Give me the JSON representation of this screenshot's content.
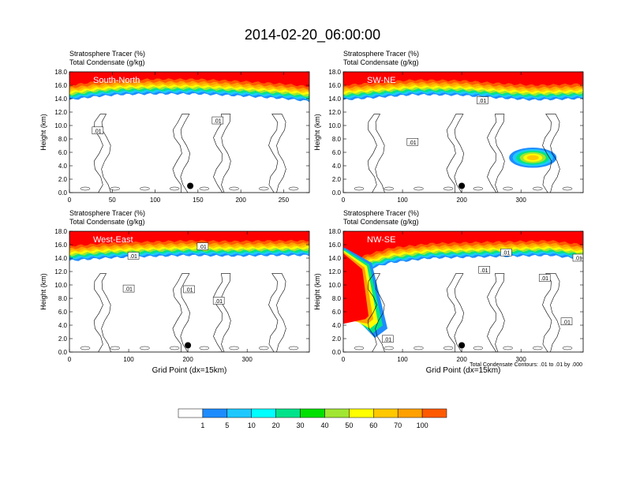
{
  "title": "2014-02-20_06:00:00",
  "colors": {
    "levels": [
      "#ffffff",
      "#1e8cff",
      "#1ec8ff",
      "#00ffff",
      "#00e38a",
      "#00e000",
      "#a0e632",
      "#ffff00",
      "#ffc800",
      "#ffa000",
      "#ff5a00",
      "#ff0000"
    ],
    "contour": "#000000",
    "dot": "#000000"
  },
  "colorbar": {
    "labels": [
      "1",
      "5",
      "10",
      "20",
      "30",
      "40",
      "50",
      "60",
      "70",
      "100"
    ]
  },
  "footnote": "Total Condensate Contours: .01 to .01 by .000",
  "chart_data": [
    {
      "type": "heatmap",
      "panel_label": "South-North",
      "header_line1": "Stratosphere Tracer   (%)",
      "header_line2": "Total Condensate   (g/kg)",
      "ylabel": "Height (km)",
      "xlabel": "",
      "xlim": [
        0,
        280
      ],
      "ylim": [
        0,
        18
      ],
      "xticks": [
        "0",
        "50",
        "100",
        "150",
        "200",
        "250"
      ],
      "xtick_values": [
        0,
        50,
        100,
        150,
        200,
        250
      ],
      "yticks": [
        "0.0",
        "2.0",
        "4.0",
        "6.0",
        "8.0",
        "10.0",
        "12.0",
        "14.0",
        "16.0",
        "18.0"
      ],
      "ytick_values": [
        0,
        2,
        4,
        6,
        8,
        10,
        12,
        14,
        16,
        18
      ],
      "tropopause_km": [
        [
          0,
          15.0
        ],
        [
          30,
          15.5
        ],
        [
          60,
          15.8
        ],
        [
          100,
          15.9
        ],
        [
          150,
          15.9
        ],
        [
          200,
          15.6
        ],
        [
          250,
          15.2
        ],
        [
          280,
          14.8
        ]
      ],
      "contour_labels": [
        {
          "text": ".01",
          "x": 33,
          "y": 9.2
        },
        {
          "text": ".01",
          "x": 173,
          "y": 10.7
        }
      ],
      "marker": {
        "x": 141,
        "y": 1.0
      },
      "blobs": []
    },
    {
      "type": "heatmap",
      "panel_label": "SW-NE",
      "header_line1": "Stratosphere Tracer   (%)",
      "header_line2": "Total Condensate   (g/kg)",
      "ylabel": "Height (km)",
      "xlabel": "",
      "xlim": [
        0,
        405
      ],
      "ylim": [
        0,
        18
      ],
      "xticks": [
        "0",
        "100",
        "200",
        "300"
      ],
      "xtick_values": [
        0,
        100,
        200,
        300
      ],
      "yticks": [
        "0.0",
        "2.0",
        "4.0",
        "6.0",
        "8.0",
        "10.0",
        "12.0",
        "14.0",
        "16.0",
        "18.0"
      ],
      "ytick_values": [
        0,
        2,
        4,
        6,
        8,
        10,
        12,
        14,
        16,
        18
      ],
      "tropopause_km": [
        [
          0,
          15.0
        ],
        [
          60,
          15.4
        ],
        [
          120,
          15.8
        ],
        [
          200,
          15.7
        ],
        [
          260,
          15.3
        ],
        [
          320,
          15.0
        ],
        [
          405,
          15.2
        ]
      ],
      "contour_labels": [
        {
          "text": ".01",
          "x": 117,
          "y": 7.5
        },
        {
          "text": ".01",
          "x": 235,
          "y": 13.7
        }
      ],
      "marker": {
        "x": 200,
        "y": 1.0
      },
      "blobs": [
        {
          "x": 320,
          "y": 5.2,
          "rx": 40,
          "ry": 1.5
        }
      ]
    },
    {
      "type": "heatmap",
      "panel_label": "West-East",
      "header_line1": "Stratosphere Tracer   (%)",
      "header_line2": "Total Condensate   (g/kg)",
      "ylabel": "Height (km)",
      "xlabel": "Grid Point (dx=15km)",
      "xlim": [
        0,
        405
      ],
      "ylim": [
        0,
        18
      ],
      "xticks": [
        "0",
        "100",
        "200",
        "300"
      ],
      "xtick_values": [
        0,
        100,
        200,
        300
      ],
      "yticks": [
        "0.0",
        "2.0",
        "4.0",
        "6.0",
        "8.0",
        "10.0",
        "12.0",
        "14.0",
        "16.0",
        "18.0"
      ],
      "ytick_values": [
        0,
        2,
        4,
        6,
        8,
        10,
        12,
        14,
        16,
        18
      ],
      "tropopause_km": [
        [
          0,
          14.8
        ],
        [
          60,
          15.2
        ],
        [
          120,
          15.4
        ],
        [
          200,
          15.6
        ],
        [
          280,
          15.5
        ],
        [
          340,
          15.6
        ],
        [
          405,
          15.6
        ]
      ],
      "contour_labels": [
        {
          "text": ".01",
          "x": 108,
          "y": 14.3
        },
        {
          "text": ".01",
          "x": 100,
          "y": 9.4
        },
        {
          "text": ".01",
          "x": 202,
          "y": 9.3
        },
        {
          "text": ".01",
          "x": 252,
          "y": 7.6
        },
        {
          "text": ".01",
          "x": 225,
          "y": 15.7
        }
      ],
      "marker": {
        "x": 200,
        "y": 1.0
      },
      "blobs": []
    },
    {
      "type": "heatmap",
      "panel_label": "NW-SE",
      "header_line1": "Stratosphere Tracer   (%)",
      "header_line2": "Total Condensate   (g/kg)",
      "ylabel": "Height (km)",
      "xlabel": "Grid Point (dx=15km)",
      "xlim": [
        0,
        405
      ],
      "ylim": [
        0,
        18
      ],
      "xticks": [
        "0",
        "100",
        "200",
        "300"
      ],
      "xtick_values": [
        0,
        100,
        200,
        300
      ],
      "yticks": [
        "0.0",
        "2.0",
        "4.0",
        "6.0",
        "8.0",
        "10.0",
        "12.0",
        "14.0",
        "16.0",
        "18.0"
      ],
      "ytick_values": [
        0,
        2,
        4,
        6,
        8,
        10,
        12,
        14,
        16,
        18
      ],
      "tropopause_km": [
        [
          0,
          12.0
        ],
        [
          40,
          13.5
        ],
        [
          80,
          14.5
        ],
        [
          150,
          15.2
        ],
        [
          250,
          15.4
        ],
        [
          350,
          15.6
        ],
        [
          405,
          15.0
        ]
      ],
      "fold": {
        "x0": 0,
        "x1": 48,
        "ybottom": 3.5
      },
      "contour_labels": [
        {
          "text": ".01",
          "x": 275,
          "y": 14.8
        },
        {
          "text": ".01",
          "x": 238,
          "y": 12.2
        },
        {
          "text": ".01",
          "x": 340,
          "y": 11.0
        },
        {
          "text": ".01",
          "x": 377,
          "y": 4.5
        },
        {
          "text": ".01",
          "x": 397,
          "y": 14.0
        },
        {
          "text": ".01",
          "x": 75,
          "y": 1.9
        }
      ],
      "marker": {
        "x": 200,
        "y": 1.0
      },
      "blobs": []
    }
  ]
}
